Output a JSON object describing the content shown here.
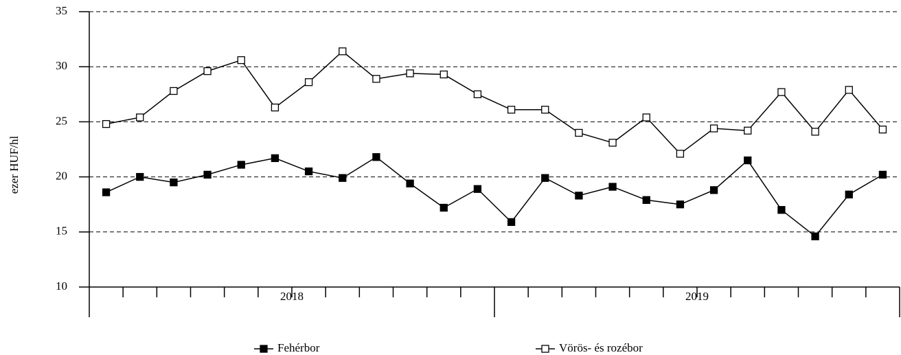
{
  "chart_data": {
    "type": "line",
    "y_label": "ezer HUF/hl",
    "categories": [
      null,
      null,
      null,
      null,
      null,
      null,
      null,
      null,
      null,
      null,
      null,
      null,
      null,
      null,
      null,
      null,
      null,
      null,
      null,
      null,
      null,
      null,
      null,
      null
    ],
    "groups": [
      "2018",
      "2019"
    ],
    "series": [
      {
        "name": "Fehérbor",
        "color": "#000000",
        "marker": "filled",
        "values": [
          18.6,
          20.0,
          19.5,
          20.2,
          21.1,
          21.7,
          20.5,
          19.9,
          21.8,
          19.4,
          17.2,
          18.9,
          15.9,
          19.9,
          18.3,
          19.1,
          17.9,
          17.5,
          18.8,
          21.5,
          17.0,
          14.6,
          18.4,
          20.2
        ]
      },
      {
        "name": "Vörös- és rozébor",
        "color": "#000000",
        "marker": "open",
        "values": [
          24.8,
          25.4,
          27.8,
          29.6,
          30.6,
          26.3,
          28.6,
          31.4,
          28.9,
          29.4,
          29.3,
          27.5,
          26.1,
          26.1,
          24.0,
          23.1,
          25.4,
          22.1,
          24.4,
          24.2,
          27.7,
          24.1,
          27.9,
          24.3
        ]
      }
    ],
    "ylim": [
      10,
      35
    ],
    "yticks": [
      10,
      15,
      20,
      25,
      30,
      35
    ],
    "grid": true
  }
}
